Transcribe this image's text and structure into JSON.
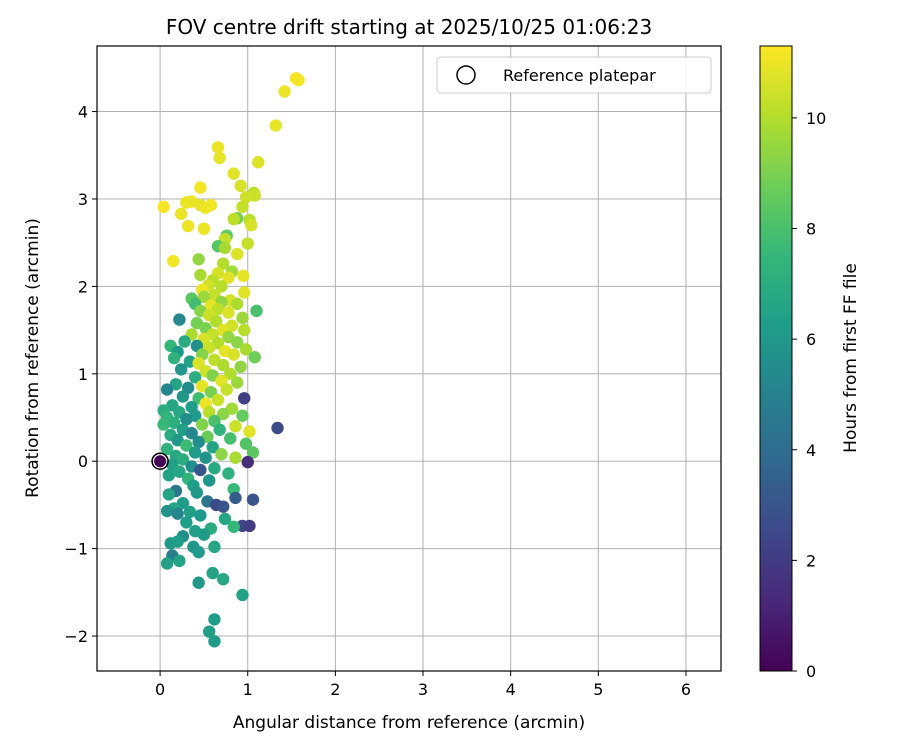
{
  "chart_data": {
    "type": "scatter",
    "title": "FOV centre drift starting at 2025/10/25 01:06:23",
    "xlabel": "Angular distance from reference (arcmin)",
    "ylabel": "Rotation from reference (arcmin)",
    "xlim": [
      -0.72,
      6.4
    ],
    "ylim": [
      -2.4,
      4.75
    ],
    "xticks": [
      0,
      1,
      2,
      3,
      4,
      5,
      6
    ],
    "yticks": [
      -2,
      -1,
      0,
      1,
      2,
      3,
      4
    ],
    "grid": true,
    "legend": {
      "placement": "top-right",
      "entries": [
        "Reference platepar"
      ]
    },
    "reference_point": {
      "x": 0,
      "y": 0,
      "label": "Reference platepar"
    },
    "colorbar": {
      "label": "Hours from first FF file",
      "range": [
        0,
        11.3
      ],
      "ticks": [
        0,
        2,
        4,
        6,
        8,
        10
      ],
      "colormap": "viridis"
    },
    "colormap_stops": [
      "#440154",
      "#482878",
      "#3e4989",
      "#31688e",
      "#26828e",
      "#1f9e89",
      "#35b779",
      "#6ece58",
      "#b5de2b",
      "#fde725"
    ],
    "points": [
      {
        "x": 1.55,
        "y": 4.38,
        "h": 11.2
      },
      {
        "x": 1.58,
        "y": 4.36,
        "h": 11.1
      },
      {
        "x": 1.42,
        "y": 4.23,
        "h": 11.0
      },
      {
        "x": 1.32,
        "y": 3.84,
        "h": 10.9
      },
      {
        "x": 0.66,
        "y": 3.59,
        "h": 11.0
      },
      {
        "x": 0.68,
        "y": 3.47,
        "h": 10.9
      },
      {
        "x": 1.12,
        "y": 3.42,
        "h": 10.7
      },
      {
        "x": 0.84,
        "y": 3.29,
        "h": 10.8
      },
      {
        "x": 0.92,
        "y": 3.15,
        "h": 10.6
      },
      {
        "x": 0.46,
        "y": 3.13,
        "h": 11.1
      },
      {
        "x": 1.07,
        "y": 3.07,
        "h": 10.2
      },
      {
        "x": 1.08,
        "y": 3.04,
        "h": 10.4
      },
      {
        "x": 0.98,
        "y": 3.02,
        "h": 10.5
      },
      {
        "x": 0.3,
        "y": 2.96,
        "h": 11.0
      },
      {
        "x": 0.36,
        "y": 2.97,
        "h": 11.0
      },
      {
        "x": 0.04,
        "y": 2.91,
        "h": 11.2
      },
      {
        "x": 0.46,
        "y": 2.93,
        "h": 10.9
      },
      {
        "x": 0.52,
        "y": 2.9,
        "h": 11.0
      },
      {
        "x": 0.58,
        "y": 2.93,
        "h": 11.1
      },
      {
        "x": 0.94,
        "y": 2.91,
        "h": 10.3
      },
      {
        "x": 0.24,
        "y": 2.83,
        "h": 11.0
      },
      {
        "x": 0.88,
        "y": 2.78,
        "h": 8.9
      },
      {
        "x": 0.84,
        "y": 2.77,
        "h": 10.2
      },
      {
        "x": 1.02,
        "y": 2.76,
        "h": 10.1
      },
      {
        "x": 1.04,
        "y": 2.7,
        "h": 10.6
      },
      {
        "x": 0.32,
        "y": 2.69,
        "h": 11.0
      },
      {
        "x": 0.5,
        "y": 2.66,
        "h": 11.0
      },
      {
        "x": 0.76,
        "y": 2.58,
        "h": 8.5
      },
      {
        "x": 0.74,
        "y": 2.54,
        "h": 10.3
      },
      {
        "x": 1.0,
        "y": 2.49,
        "h": 10.3
      },
      {
        "x": 0.66,
        "y": 2.46,
        "h": 8.3
      },
      {
        "x": 0.74,
        "y": 2.44,
        "h": 9.8
      },
      {
        "x": 0.88,
        "y": 2.37,
        "h": 10.7
      },
      {
        "x": 0.15,
        "y": 2.29,
        "h": 11.1
      },
      {
        "x": 0.44,
        "y": 2.31,
        "h": 9.4
      },
      {
        "x": 0.72,
        "y": 2.26,
        "h": 10.0
      },
      {
        "x": 0.82,
        "y": 2.17,
        "h": 9.7
      },
      {
        "x": 0.95,
        "y": 2.12,
        "h": 10.9
      },
      {
        "x": 0.66,
        "y": 2.15,
        "h": 10.6
      },
      {
        "x": 0.46,
        "y": 2.13,
        "h": 9.8
      },
      {
        "x": 0.6,
        "y": 2.07,
        "h": 10.2
      },
      {
        "x": 0.78,
        "y": 2.1,
        "h": 10.8
      },
      {
        "x": 0.55,
        "y": 2.01,
        "h": 10.5
      },
      {
        "x": 0.7,
        "y": 2.0,
        "h": 10.1
      },
      {
        "x": 0.48,
        "y": 1.96,
        "h": 11.0
      },
      {
        "x": 0.96,
        "y": 1.93,
        "h": 10.8
      },
      {
        "x": 0.62,
        "y": 1.9,
        "h": 10.3
      },
      {
        "x": 0.5,
        "y": 1.88,
        "h": 9.6
      },
      {
        "x": 0.36,
        "y": 1.86,
        "h": 8.4
      },
      {
        "x": 0.8,
        "y": 1.84,
        "h": 10.6
      },
      {
        "x": 0.7,
        "y": 1.82,
        "h": 9.4
      },
      {
        "x": 0.4,
        "y": 1.8,
        "h": 7.8
      },
      {
        "x": 0.58,
        "y": 1.78,
        "h": 10.9
      },
      {
        "x": 0.88,
        "y": 1.8,
        "h": 9.9
      },
      {
        "x": 1.1,
        "y": 1.72,
        "h": 8.0
      },
      {
        "x": 0.66,
        "y": 1.74,
        "h": 10.2
      },
      {
        "x": 0.46,
        "y": 1.72,
        "h": 9.2
      },
      {
        "x": 0.78,
        "y": 1.7,
        "h": 10.7
      },
      {
        "x": 0.56,
        "y": 1.67,
        "h": 10.4
      },
      {
        "x": 0.22,
        "y": 1.62,
        "h": 5.3
      },
      {
        "x": 0.94,
        "y": 1.64,
        "h": 9.6
      },
      {
        "x": 0.64,
        "y": 1.6,
        "h": 10.0
      },
      {
        "x": 0.42,
        "y": 1.58,
        "h": 8.9
      },
      {
        "x": 0.82,
        "y": 1.55,
        "h": 10.5
      },
      {
        "x": 0.52,
        "y": 1.52,
        "h": 9.0
      },
      {
        "x": 0.72,
        "y": 1.5,
        "h": 10.8
      },
      {
        "x": 0.96,
        "y": 1.5,
        "h": 10.1
      },
      {
        "x": 0.36,
        "y": 1.45,
        "h": 9.9
      },
      {
        "x": 0.6,
        "y": 1.45,
        "h": 10.3
      },
      {
        "x": 0.78,
        "y": 1.42,
        "h": 9.5
      },
      {
        "x": 0.5,
        "y": 1.4,
        "h": 10.6
      },
      {
        "x": 0.28,
        "y": 1.37,
        "h": 6.9
      },
      {
        "x": 0.88,
        "y": 1.36,
        "h": 9.3
      },
      {
        "x": 0.66,
        "y": 1.35,
        "h": 10.0
      },
      {
        "x": 0.42,
        "y": 1.32,
        "h": 5.7
      },
      {
        "x": 0.12,
        "y": 1.32,
        "h": 7.5
      },
      {
        "x": 0.56,
        "y": 1.3,
        "h": 10.4
      },
      {
        "x": 0.98,
        "y": 1.28,
        "h": 9.8
      },
      {
        "x": 0.74,
        "y": 1.26,
        "h": 10.9
      },
      {
        "x": 0.2,
        "y": 1.25,
        "h": 6.2
      },
      {
        "x": 0.48,
        "y": 1.22,
        "h": 9.2
      },
      {
        "x": 0.84,
        "y": 1.22,
        "h": 10.6
      },
      {
        "x": 1.08,
        "y": 1.19,
        "h": 8.8
      },
      {
        "x": 0.16,
        "y": 1.18,
        "h": 7.2
      },
      {
        "x": 0.62,
        "y": 1.16,
        "h": 10.2
      },
      {
        "x": 0.34,
        "y": 1.14,
        "h": 6.5
      },
      {
        "x": 0.44,
        "y": 1.12,
        "h": 10.7
      },
      {
        "x": 0.72,
        "y": 1.1,
        "h": 9.9
      },
      {
        "x": 0.92,
        "y": 1.08,
        "h": 9.4
      },
      {
        "x": 0.24,
        "y": 1.05,
        "h": 5.9
      },
      {
        "x": 0.52,
        "y": 1.03,
        "h": 10.5
      },
      {
        "x": 0.8,
        "y": 1.0,
        "h": 10.0
      },
      {
        "x": 0.6,
        "y": 0.98,
        "h": 9.1
      },
      {
        "x": 0.4,
        "y": 0.96,
        "h": 7.0
      },
      {
        "x": 0.7,
        "y": 0.92,
        "h": 10.8
      },
      {
        "x": 0.88,
        "y": 0.9,
        "h": 9.6
      },
      {
        "x": 0.18,
        "y": 0.88,
        "h": 6.6
      },
      {
        "x": 0.48,
        "y": 0.86,
        "h": 10.9
      },
      {
        "x": 0.32,
        "y": 0.84,
        "h": 5.4
      },
      {
        "x": 0.08,
        "y": 0.82,
        "h": 5.1
      },
      {
        "x": 0.76,
        "y": 0.82,
        "h": 10.3
      },
      {
        "x": 0.58,
        "y": 0.79,
        "h": 9.0
      },
      {
        "x": 0.96,
        "y": 0.72,
        "h": 2.1
      },
      {
        "x": 0.26,
        "y": 0.74,
        "h": 6.0
      },
      {
        "x": 0.44,
        "y": 0.72,
        "h": 7.8
      },
      {
        "x": 0.66,
        "y": 0.7,
        "h": 10.4
      },
      {
        "x": 0.52,
        "y": 0.66,
        "h": 11.0
      },
      {
        "x": 0.14,
        "y": 0.64,
        "h": 6.7
      },
      {
        "x": 0.36,
        "y": 0.62,
        "h": 6.3
      },
      {
        "x": 0.82,
        "y": 0.6,
        "h": 9.7
      },
      {
        "x": 0.04,
        "y": 0.58,
        "h": 7.0
      },
      {
        "x": 0.22,
        "y": 0.56,
        "h": 6.8
      },
      {
        "x": 0.56,
        "y": 0.56,
        "h": 10.1
      },
      {
        "x": 0.72,
        "y": 0.54,
        "h": 9.3
      },
      {
        "x": 0.94,
        "y": 0.52,
        "h": 8.6
      },
      {
        "x": 0.4,
        "y": 0.52,
        "h": 6.1
      },
      {
        "x": 0.08,
        "y": 0.5,
        "h": 7.4
      },
      {
        "x": 0.3,
        "y": 0.48,
        "h": 5.6
      },
      {
        "x": 0.62,
        "y": 0.46,
        "h": 8.0
      },
      {
        "x": 0.16,
        "y": 0.44,
        "h": 7.1
      },
      {
        "x": 0.04,
        "y": 0.42,
        "h": 7.6
      },
      {
        "x": 0.48,
        "y": 0.42,
        "h": 9.1
      },
      {
        "x": 0.86,
        "y": 0.4,
        "h": 10.4
      },
      {
        "x": 1.34,
        "y": 0.38,
        "h": 2.6
      },
      {
        "x": 0.26,
        "y": 0.36,
        "h": 6.4
      },
      {
        "x": 0.68,
        "y": 0.36,
        "h": 7.3
      },
      {
        "x": 1.02,
        "y": 0.34,
        "h": 10.8
      },
      {
        "x": 0.36,
        "y": 0.32,
        "h": 5.2
      },
      {
        "x": 0.12,
        "y": 0.3,
        "h": 6.9
      },
      {
        "x": 0.54,
        "y": 0.28,
        "h": 8.7
      },
      {
        "x": 0.8,
        "y": 0.26,
        "h": 7.9
      },
      {
        "x": 0.2,
        "y": 0.24,
        "h": 6.0
      },
      {
        "x": 0.44,
        "y": 0.22,
        "h": 5.5
      },
      {
        "x": 0.98,
        "y": 0.2,
        "h": 8.2
      },
      {
        "x": 0.3,
        "y": 0.18,
        "h": 7.7
      },
      {
        "x": 0.6,
        "y": 0.16,
        "h": 6.6
      },
      {
        "x": 0.08,
        "y": 0.14,
        "h": 7.3
      },
      {
        "x": 1.06,
        "y": 0.1,
        "h": 8.4
      },
      {
        "x": 0.4,
        "y": 0.1,
        "h": 6.2
      },
      {
        "x": 0.7,
        "y": 0.08,
        "h": 9.3
      },
      {
        "x": 0.18,
        "y": 0.06,
        "h": 6.8
      },
      {
        "x": 0.52,
        "y": 0.04,
        "h": 5.8
      },
      {
        "x": 0.86,
        "y": 0.04,
        "h": 9.8
      },
      {
        "x": 0.26,
        "y": 0.02,
        "h": 7.0
      },
      {
        "x": 1.0,
        "y": -0.01,
        "h": 1.5
      },
      {
        "x": 0.14,
        "y": -0.04,
        "h": 6.4
      },
      {
        "x": 0.36,
        "y": -0.06,
        "h": 5.6
      },
      {
        "x": 0.62,
        "y": -0.08,
        "h": 6.9
      },
      {
        "x": 0.46,
        "y": -0.1,
        "h": 3.1
      },
      {
        "x": 0.22,
        "y": -0.12,
        "h": 6.7
      },
      {
        "x": 0.78,
        "y": -0.14,
        "h": 7.2
      },
      {
        "x": 0.1,
        "y": -0.16,
        "h": 6.5
      },
      {
        "x": 0.32,
        "y": -0.2,
        "h": 7.4
      },
      {
        "x": 0.56,
        "y": -0.22,
        "h": 5.9
      },
      {
        "x": 0.38,
        "y": -0.28,
        "h": 6.3
      },
      {
        "x": 0.84,
        "y": -0.32,
        "h": 7.6
      },
      {
        "x": 0.18,
        "y": -0.34,
        "h": 4.4
      },
      {
        "x": 0.42,
        "y": -0.36,
        "h": 6.0
      },
      {
        "x": 0.1,
        "y": -0.38,
        "h": 6.6
      },
      {
        "x": 0.86,
        "y": -0.42,
        "h": 3.3
      },
      {
        "x": 1.06,
        "y": -0.44,
        "h": 2.9
      },
      {
        "x": 0.54,
        "y": -0.46,
        "h": 4.5
      },
      {
        "x": 0.26,
        "y": -0.48,
        "h": 6.2
      },
      {
        "x": 0.64,
        "y": -0.5,
        "h": 2.5
      },
      {
        "x": 0.72,
        "y": -0.52,
        "h": 3.0
      },
      {
        "x": 0.16,
        "y": -0.54,
        "h": 6.8
      },
      {
        "x": 0.08,
        "y": -0.57,
        "h": 5.8
      },
      {
        "x": 0.34,
        "y": -0.58,
        "h": 6.4
      },
      {
        "x": 0.2,
        "y": -0.6,
        "h": 5.1
      },
      {
        "x": 0.46,
        "y": -0.62,
        "h": 6.1
      },
      {
        "x": 0.74,
        "y": -0.66,
        "h": 6.7
      },
      {
        "x": 0.3,
        "y": -0.7,
        "h": 6.3
      },
      {
        "x": 0.94,
        "y": -0.74,
        "h": 2.4
      },
      {
        "x": 1.02,
        "y": -0.74,
        "h": 2.0
      },
      {
        "x": 0.84,
        "y": -0.75,
        "h": 7.5
      },
      {
        "x": 0.58,
        "y": -0.77,
        "h": 6.9
      },
      {
        "x": 0.4,
        "y": -0.8,
        "h": 6.4
      },
      {
        "x": 0.5,
        "y": -0.84,
        "h": 6.2
      },
      {
        "x": 0.26,
        "y": -0.86,
        "h": 5.6
      },
      {
        "x": 0.12,
        "y": -0.94,
        "h": 6.0
      },
      {
        "x": 0.2,
        "y": -0.92,
        "h": 6.3
      },
      {
        "x": 0.38,
        "y": -0.98,
        "h": 5.9
      },
      {
        "x": 0.62,
        "y": -0.98,
        "h": 6.7
      },
      {
        "x": 0.44,
        "y": -1.04,
        "h": 6.1
      },
      {
        "x": 0.14,
        "y": -1.08,
        "h": 4.8
      },
      {
        "x": 0.22,
        "y": -1.14,
        "h": 6.5
      },
      {
        "x": 0.08,
        "y": -1.17,
        "h": 6.4
      },
      {
        "x": 0.6,
        "y": -1.28,
        "h": 6.6
      },
      {
        "x": 0.72,
        "y": -1.35,
        "h": 6.8
      },
      {
        "x": 0.44,
        "y": -1.39,
        "h": 6.0
      },
      {
        "x": 0.94,
        "y": -1.53,
        "h": 6.5
      },
      {
        "x": 0.62,
        "y": -1.81,
        "h": 6.3
      },
      {
        "x": 0.56,
        "y": -1.95,
        "h": 6.4
      },
      {
        "x": 0.62,
        "y": -2.06,
        "h": 6.2
      }
    ]
  }
}
